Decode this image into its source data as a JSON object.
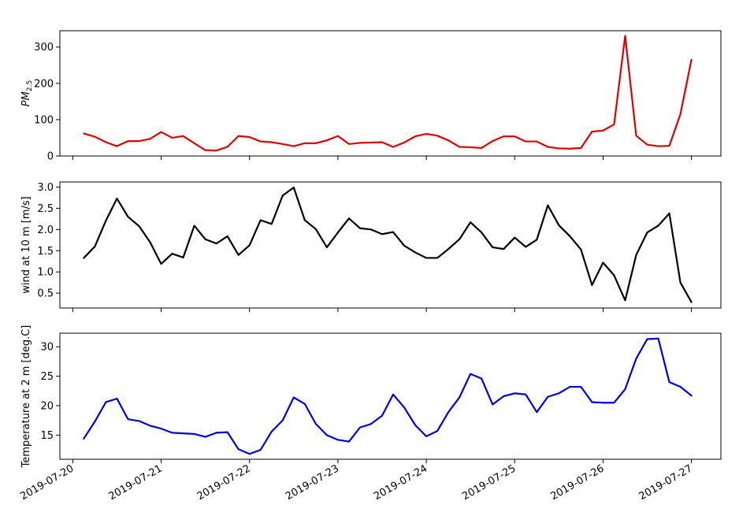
{
  "chart_data": [
    {
      "type": "line",
      "panel": "top",
      "ylabel_main": "PM",
      "ylabel_sub": "2.5",
      "ylim": [
        0,
        345
      ],
      "yticks": [
        0,
        100,
        200,
        300
      ],
      "color": "#dd0000",
      "series": [
        {
          "x": [
            "2019-07-20 03:00",
            "2019-07-20 06:00",
            "2019-07-20 09:00",
            "2019-07-20 12:00",
            "2019-07-20 15:00",
            "2019-07-20 18:00",
            "2019-07-20 21:00",
            "2019-07-21 00:00",
            "2019-07-21 03:00",
            "2019-07-21 06:00",
            "2019-07-21 09:00",
            "2019-07-21 12:00",
            "2019-07-21 15:00",
            "2019-07-21 18:00",
            "2019-07-21 21:00",
            "2019-07-22 00:00",
            "2019-07-22 03:00",
            "2019-07-22 06:00",
            "2019-07-22 09:00",
            "2019-07-22 12:00",
            "2019-07-22 15:00",
            "2019-07-22 18:00",
            "2019-07-22 21:00",
            "2019-07-23 00:00",
            "2019-07-23 03:00",
            "2019-07-23 06:00",
            "2019-07-23 09:00",
            "2019-07-23 12:00",
            "2019-07-23 15:00",
            "2019-07-23 18:00",
            "2019-07-23 21:00",
            "2019-07-24 00:00",
            "2019-07-24 03:00",
            "2019-07-24 06:00",
            "2019-07-24 09:00",
            "2019-07-24 12:00",
            "2019-07-24 15:00",
            "2019-07-24 18:00",
            "2019-07-24 21:00",
            "2019-07-25 00:00",
            "2019-07-25 03:00",
            "2019-07-25 06:00",
            "2019-07-25 09:00",
            "2019-07-25 12:00",
            "2019-07-25 15:00",
            "2019-07-25 18:00",
            "2019-07-25 21:00",
            "2019-07-26 00:00",
            "2019-07-26 03:00",
            "2019-07-26 06:00",
            "2019-07-26 09:00",
            "2019-07-26 12:00",
            "2019-07-26 15:00",
            "2019-07-26 18:00",
            "2019-07-26 21:00",
            "2019-07-27 00:00"
          ],
          "y": [
            62,
            53,
            38,
            27,
            41,
            41,
            47,
            66,
            50,
            55,
            35,
            16,
            15,
            25,
            55,
            52,
            40,
            38,
            33,
            27,
            35,
            35,
            43,
            55,
            33,
            36,
            37,
            38,
            25,
            37,
            54,
            61,
            56,
            43,
            25,
            24,
            22,
            41,
            54,
            54,
            40,
            40,
            25,
            21,
            20,
            22,
            67,
            70,
            87,
            331,
            56,
            31,
            27,
            28,
            115,
            265
          ]
        }
      ]
    },
    {
      "type": "line",
      "panel": "middle",
      "ylabel": "wind at 10 m [m/s]",
      "ylim": [
        0.15,
        3.12
      ],
      "yticks": [
        0.5,
        1.0,
        1.5,
        2.0,
        2.5,
        3.0
      ],
      "color": "#000000",
      "series": [
        {
          "x": [
            "2019-07-20 03:00",
            "2019-07-20 06:00",
            "2019-07-20 09:00",
            "2019-07-20 12:00",
            "2019-07-20 15:00",
            "2019-07-20 18:00",
            "2019-07-20 21:00",
            "2019-07-21 00:00",
            "2019-07-21 03:00",
            "2019-07-21 06:00",
            "2019-07-21 09:00",
            "2019-07-21 12:00",
            "2019-07-21 15:00",
            "2019-07-21 18:00",
            "2019-07-21 21:00",
            "2019-07-22 00:00",
            "2019-07-22 03:00",
            "2019-07-22 06:00",
            "2019-07-22 09:00",
            "2019-07-22 12:00",
            "2019-07-22 15:00",
            "2019-07-22 18:00",
            "2019-07-22 21:00",
            "2019-07-23 00:00",
            "2019-07-23 03:00",
            "2019-07-23 06:00",
            "2019-07-23 09:00",
            "2019-07-23 12:00",
            "2019-07-23 15:00",
            "2019-07-23 18:00",
            "2019-07-23 21:00",
            "2019-07-24 00:00",
            "2019-07-24 03:00",
            "2019-07-24 06:00",
            "2019-07-24 09:00",
            "2019-07-24 12:00",
            "2019-07-24 15:00",
            "2019-07-24 18:00",
            "2019-07-24 21:00",
            "2019-07-25 00:00",
            "2019-07-25 03:00",
            "2019-07-25 06:00",
            "2019-07-25 09:00",
            "2019-07-25 12:00",
            "2019-07-25 15:00",
            "2019-07-25 18:00",
            "2019-07-25 21:00",
            "2019-07-26 00:00",
            "2019-07-26 03:00",
            "2019-07-26 06:00",
            "2019-07-26 09:00",
            "2019-07-26 12:00",
            "2019-07-26 15:00",
            "2019-07-26 18:00",
            "2019-07-26 21:00",
            "2019-07-27 00:00"
          ],
          "y": [
            1.33,
            1.6,
            2.21,
            2.73,
            2.3,
            2.08,
            1.7,
            1.19,
            1.43,
            1.34,
            2.09,
            1.77,
            1.67,
            1.84,
            1.4,
            1.63,
            2.22,
            2.13,
            2.8,
            2.99,
            2.22,
            2.01,
            1.58,
            1.93,
            2.26,
            2.03,
            2.0,
            1.89,
            1.94,
            1.62,
            1.46,
            1.33,
            1.33,
            1.54,
            1.77,
            2.17,
            1.93,
            1.58,
            1.54,
            1.81,
            1.59,
            1.76,
            2.57,
            2.1,
            1.84,
            1.53,
            0.69,
            1.22,
            0.92,
            0.33,
            1.4,
            1.93,
            2.09,
            2.38,
            0.75,
            0.29
          ]
        }
      ]
    },
    {
      "type": "line",
      "panel": "bottom",
      "ylabel": "Temperature at 2 m [deg.C]",
      "ylim": [
        10.9,
        32.3
      ],
      "yticks": [
        15,
        20,
        25,
        30
      ],
      "color": "#0000dd",
      "xlim": [
        "2019-07-19 20:30",
        "2019-07-27 08:00"
      ],
      "xticks": [
        "2019-07-20",
        "2019-07-21",
        "2019-07-22",
        "2019-07-23",
        "2019-07-24",
        "2019-07-25",
        "2019-07-26",
        "2019-07-27"
      ],
      "series": [
        {
          "x": [
            "2019-07-20 03:00",
            "2019-07-20 06:00",
            "2019-07-20 09:00",
            "2019-07-20 12:00",
            "2019-07-20 15:00",
            "2019-07-20 18:00",
            "2019-07-20 21:00",
            "2019-07-21 00:00",
            "2019-07-21 03:00",
            "2019-07-21 06:00",
            "2019-07-21 09:00",
            "2019-07-21 12:00",
            "2019-07-21 15:00",
            "2019-07-21 18:00",
            "2019-07-21 21:00",
            "2019-07-22 00:00",
            "2019-07-22 03:00",
            "2019-07-22 06:00",
            "2019-07-22 09:00",
            "2019-07-22 12:00",
            "2019-07-22 15:00",
            "2019-07-22 18:00",
            "2019-07-22 21:00",
            "2019-07-23 00:00",
            "2019-07-23 03:00",
            "2019-07-23 06:00",
            "2019-07-23 09:00",
            "2019-07-23 12:00",
            "2019-07-23 15:00",
            "2019-07-23 18:00",
            "2019-07-23 21:00",
            "2019-07-24 00:00",
            "2019-07-24 03:00",
            "2019-07-24 06:00",
            "2019-07-24 09:00",
            "2019-07-24 12:00",
            "2019-07-24 15:00",
            "2019-07-24 18:00",
            "2019-07-24 21:00",
            "2019-07-25 00:00",
            "2019-07-25 03:00",
            "2019-07-25 06:00",
            "2019-07-25 09:00",
            "2019-07-25 12:00",
            "2019-07-25 15:00",
            "2019-07-25 18:00",
            "2019-07-25 21:00",
            "2019-07-26 00:00",
            "2019-07-26 03:00",
            "2019-07-26 06:00",
            "2019-07-26 09:00",
            "2019-07-26 12:00",
            "2019-07-26 15:00",
            "2019-07-26 18:00",
            "2019-07-26 21:00",
            "2019-07-27 00:00"
          ],
          "y": [
            14.4,
            17.3,
            20.6,
            21.2,
            17.7,
            17.4,
            16.6,
            16.1,
            15.4,
            15.3,
            15.2,
            14.7,
            15.4,
            15.5,
            12.6,
            11.8,
            12.5,
            15.6,
            17.5,
            21.4,
            20.3,
            16.9,
            15.0,
            14.2,
            13.9,
            16.3,
            16.9,
            18.3,
            21.9,
            19.7,
            16.7,
            14.8,
            15.7,
            18.9,
            21.4,
            25.4,
            24.6,
            20.2,
            21.6,
            22.1,
            21.9,
            18.9,
            21.5,
            22.1,
            23.2,
            23.2,
            20.6,
            20.5,
            20.5,
            22.8,
            28.0,
            31.3,
            31.4,
            24.0,
            23.2,
            21.7
          ]
        }
      ]
    }
  ]
}
